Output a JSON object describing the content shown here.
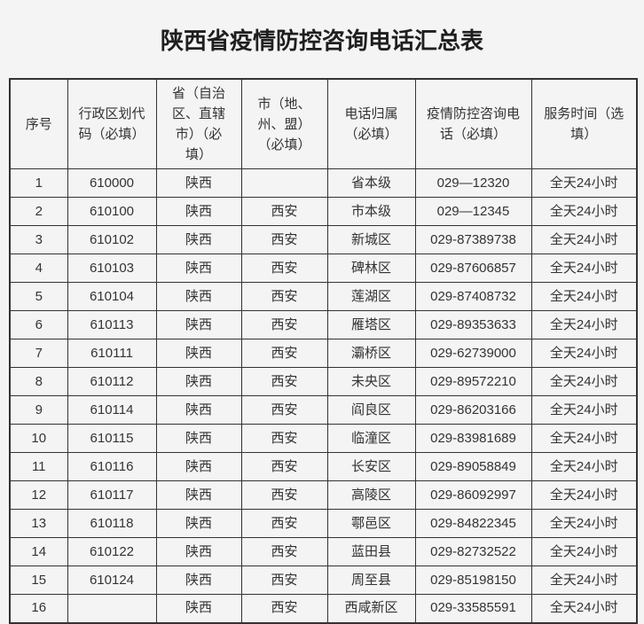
{
  "page": {
    "title": "陕西省疫情防控咨询电话汇总表"
  },
  "colors": {
    "page_background": "#f4f4f4",
    "border": "#333333",
    "text": "#333333",
    "title_text": "#1f1f1f"
  },
  "table": {
    "columns": [
      {
        "key": "index",
        "label": "序号"
      },
      {
        "key": "code",
        "label": "行政区划代码（必填）"
      },
      {
        "key": "province",
        "label": "省（自治区、直辖市）（必填）"
      },
      {
        "key": "city",
        "label": "市（地、州、盟）（必填）"
      },
      {
        "key": "attribution",
        "label": "电话归属（必填）"
      },
      {
        "key": "phone",
        "label": "疫情防控咨询电话（必填）"
      },
      {
        "key": "service",
        "label": "服务时间（选填）"
      }
    ],
    "rows": [
      [
        "1",
        "610000",
        "陕西",
        "",
        "省本级",
        "029—12320",
        "全天24小时"
      ],
      [
        "2",
        "610100",
        "陕西",
        "西安",
        "市本级",
        "029—12345",
        "全天24小时"
      ],
      [
        "3",
        "610102",
        "陕西",
        "西安",
        "新城区",
        "029-87389738",
        "全天24小时"
      ],
      [
        "4",
        "610103",
        "陕西",
        "西安",
        "碑林区",
        "029-87606857",
        "全天24小时"
      ],
      [
        "5",
        "610104",
        "陕西",
        "西安",
        "莲湖区",
        "029-87408732",
        "全天24小时"
      ],
      [
        "6",
        "610113",
        "陕西",
        "西安",
        "雁塔区",
        "029-89353633",
        "全天24小时"
      ],
      [
        "7",
        "610111",
        "陕西",
        "西安",
        "灞桥区",
        "029-62739000",
        "全天24小时"
      ],
      [
        "8",
        "610112",
        "陕西",
        "西安",
        "未央区",
        "029-89572210",
        "全天24小时"
      ],
      [
        "9",
        "610114",
        "陕西",
        "西安",
        "阎良区",
        "029-86203166",
        "全天24小时"
      ],
      [
        "10",
        "610115",
        "陕西",
        "西安",
        "临潼区",
        "029-83981689",
        "全天24小时"
      ],
      [
        "11",
        "610116",
        "陕西",
        "西安",
        "长安区",
        "029-89058849",
        "全天24小时"
      ],
      [
        "12",
        "610117",
        "陕西",
        "西安",
        "高陵区",
        "029-86092997",
        "全天24小时"
      ],
      [
        "13",
        "610118",
        "陕西",
        "西安",
        "鄠邑区",
        "029-84822345",
        "全天24小时"
      ],
      [
        "14",
        "610122",
        "陕西",
        "西安",
        "蓝田县",
        "029-82732522",
        "全天24小时"
      ],
      [
        "15",
        "610124",
        "陕西",
        "西安",
        "周至县",
        "029-85198150",
        "全天24小时"
      ],
      [
        "16",
        "",
        "陕西",
        "西安",
        "西咸新区",
        "029-33585591",
        "全天24小时"
      ]
    ]
  }
}
